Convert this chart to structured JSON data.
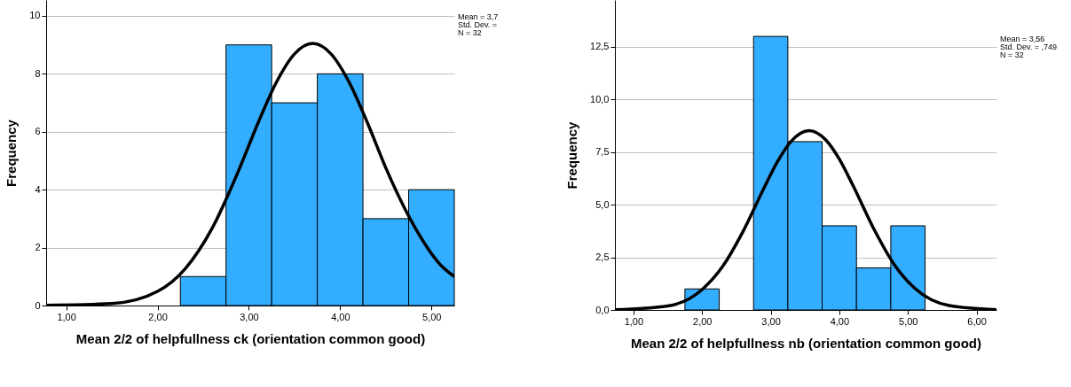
{
  "chart_data": [
    {
      "type": "histogram",
      "xlabel": "Mean 2/2 of helpfullness ck (orientation common good)",
      "ylabel": "Frequency",
      "bins": [
        2.25,
        2.75,
        3.25,
        3.75,
        4.25,
        4.75,
        5.25
      ],
      "values": [
        1,
        9,
        7,
        8,
        3,
        4
      ],
      "color": "#33adff",
      "series": [
        {
          "type": "line",
          "color": "#000000",
          "x": [
            0.78,
            1.5,
            2.0,
            2.3,
            2.6,
            2.9,
            3.1,
            3.3,
            3.5,
            3.7,
            3.9,
            4.1,
            4.3,
            4.5,
            4.8,
            5.1,
            5.25
          ],
          "values": [
            0.01,
            0.07,
            0.49,
            1.26,
            2.68,
            4.75,
            6.3,
            7.7,
            8.69,
            9.05,
            8.69,
            7.7,
            6.3,
            4.75,
            2.8,
            1.4,
            1.0
          ]
        }
      ],
      "xlim": [
        0.78,
        5.25
      ],
      "ylim": [
        0,
        10.55
      ],
      "xticks": [
        {
          "value": 1,
          "label": "1,00"
        },
        {
          "value": 2,
          "label": "2,00"
        },
        {
          "value": 3,
          "label": "3,00"
        },
        {
          "value": 4,
          "label": "4,00"
        },
        {
          "value": 5,
          "label": "5,00"
        }
      ],
      "yticks": [
        0,
        2,
        4,
        6,
        8,
        10
      ],
      "grid": "y",
      "line_style": "solid",
      "marker": "none",
      "annotations": [
        "Mean = 3,7",
        "Std. Dev. =",
        "N = 32"
      ]
    },
    {
      "type": "histogram",
      "xlabel": "Mean 2/2 of helpfullness nb (orientation common good)",
      "ylabel": "Frequency",
      "bins": [
        1.75,
        2.25,
        2.75,
        3.25,
        3.75,
        4.25,
        4.75,
        5.25
      ],
      "values": [
        1,
        0,
        13,
        8,
        4,
        2,
        4
      ],
      "color": "#33adff",
      "series": [
        {
          "type": "line",
          "color": "#000000",
          "x": [
            0.73,
            1.5,
            2.0,
            2.3,
            2.6,
            2.9,
            3.1,
            3.3,
            3.56,
            3.8,
            4.0,
            4.2,
            4.5,
            4.8,
            5.1,
            5.6,
            6.29
          ],
          "values": [
            0.01,
            0.19,
            0.97,
            2.07,
            3.75,
            5.78,
            7.05,
            8.02,
            8.52,
            8.09,
            7.17,
            5.91,
            3.87,
            2.16,
            1.03,
            0.21,
            0.01
          ]
        }
      ],
      "xlim": [
        0.73,
        6.29
      ],
      "ylim": [
        0,
        14.73
      ],
      "xticks": [
        {
          "value": 1,
          "label": "1,00"
        },
        {
          "value": 2,
          "label": "2,00"
        },
        {
          "value": 3,
          "label": "3,00"
        },
        {
          "value": 4,
          "label": "4,00"
        },
        {
          "value": 5,
          "label": "5,00"
        },
        {
          "value": 6,
          "label": "6,00"
        }
      ],
      "yticks": [
        {
          "value": 0,
          "label": "0,0"
        },
        {
          "value": 2.5,
          "label": "2,5"
        },
        {
          "value": 5,
          "label": "5,0"
        },
        {
          "value": 7.5,
          "label": "7,5"
        },
        {
          "value": 10,
          "label": "10,0"
        },
        {
          "value": 12.5,
          "label": "12,5"
        }
      ],
      "grid": "y",
      "line_style": "solid",
      "marker": "none",
      "annotations": [
        "Mean = 3,56",
        "Std. Dev. = ,749",
        "N = 32"
      ]
    }
  ]
}
